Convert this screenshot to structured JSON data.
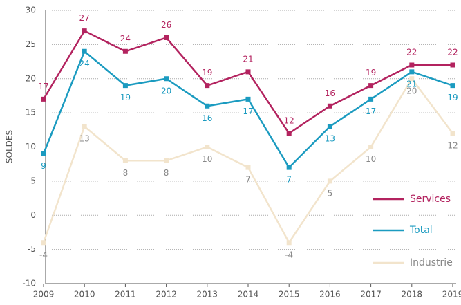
{
  "chart_data": {
    "type": "line",
    "y_label": "SOLDES",
    "categories": [
      "2009",
      "2010",
      "2011",
      "2012",
      "2013",
      "2014",
      "2015",
      "2016",
      "2017",
      "2018",
      "2019"
    ],
    "series": [
      {
        "name": "Services",
        "color": "#b3235f",
        "label_color": "#b3235f",
        "values": [
          17,
          27,
          24,
          26,
          19,
          21,
          12,
          16,
          19,
          22,
          22
        ]
      },
      {
        "name": "Total",
        "color": "#1b9bc0",
        "label_color": "#1b9bc0",
        "values": [
          9,
          24,
          19,
          20,
          16,
          17,
          7,
          13,
          17,
          21,
          19
        ]
      },
      {
        "name": "Industrie",
        "color": "#f2e4cc",
        "label_color": "#888888",
        "values": [
          -4,
          13,
          8,
          8,
          10,
          7,
          -4,
          5,
          10,
          20,
          12
        ]
      }
    ],
    "ylim": [
      -10,
      30
    ],
    "yticks": [
      -10,
      -5,
      0,
      5,
      10,
      15,
      20,
      25,
      30
    ],
    "grid": true,
    "legend": "lower right"
  }
}
